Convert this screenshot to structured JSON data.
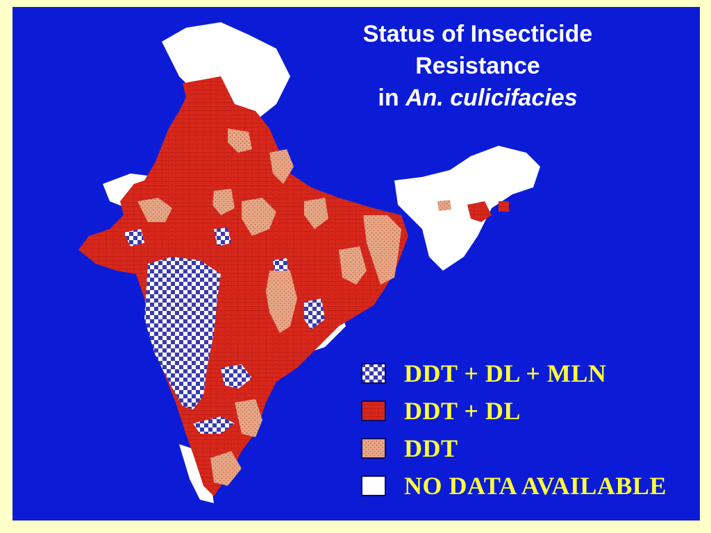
{
  "title": {
    "line1": "Status of Insecticide",
    "line2": "Resistance",
    "line3_prefix": "in ",
    "line3_species": "An. culicifacies"
  },
  "legend": [
    {
      "label": "DDT + DL + MLN",
      "pattern": "checker-blue-white"
    },
    {
      "label": "DDT + DL",
      "pattern": "red-brick"
    },
    {
      "label": "DDT",
      "pattern": "tan-dotted"
    },
    {
      "label": "NO DATA AVAILABLE",
      "pattern": "white"
    }
  ],
  "colors": {
    "page_background": "#ffffc8",
    "map_background": "#0c1cd6",
    "title_text": "#ffffff",
    "legend_text": "#ffff3a",
    "ddt_dl_mln": "#3a3ab0",
    "ddt_dl": "#d8281c",
    "ddt": "#e0a080",
    "no_data": "#ffffff"
  }
}
